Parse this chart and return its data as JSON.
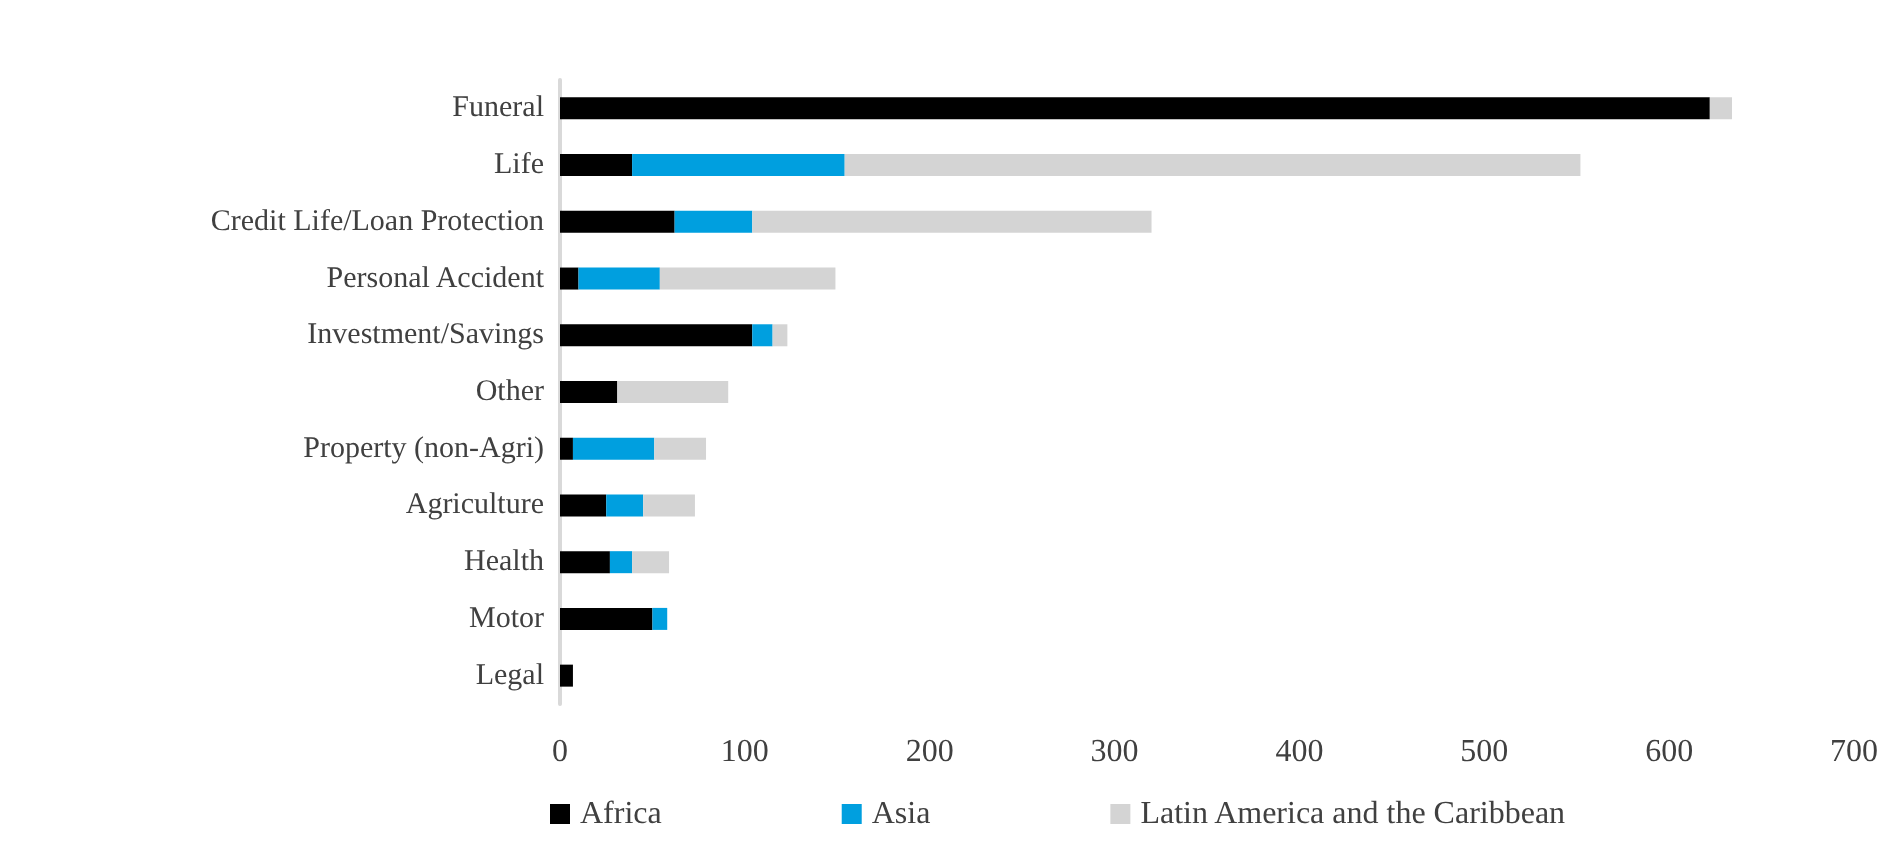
{
  "chart_data": {
    "type": "bar",
    "orientation": "horizontal",
    "stacked": true,
    "categories": [
      "Funeral",
      "Life",
      "Credit Life/Loan Protection",
      "Personal Accident",
      "Investment/Savings",
      "Other",
      "Property (non-Agri)",
      "Agriculture",
      "Health",
      "Motor",
      "Legal"
    ],
    "series": [
      {
        "name": "Africa",
        "color": "#000000",
        "values": [
          622,
          39,
          62,
          10,
          104,
          31,
          7,
          25,
          27,
          50,
          7
        ]
      },
      {
        "name": "Asia",
        "color": "#009fdf",
        "values": [
          0,
          115,
          42,
          44,
          11,
          0,
          44,
          20,
          12,
          8,
          0
        ]
      },
      {
        "name": "Latin America and the Caribbean",
        "color": "#d4d4d4",
        "values": [
          12,
          398,
          216,
          95,
          8,
          60,
          28,
          28,
          20,
          0,
          0
        ]
      }
    ],
    "xlim": [
      0,
      700
    ],
    "xticks": [
      0,
      100,
      200,
      300,
      400,
      500,
      600,
      700
    ],
    "grid": false,
    "legend": "bottom"
  }
}
